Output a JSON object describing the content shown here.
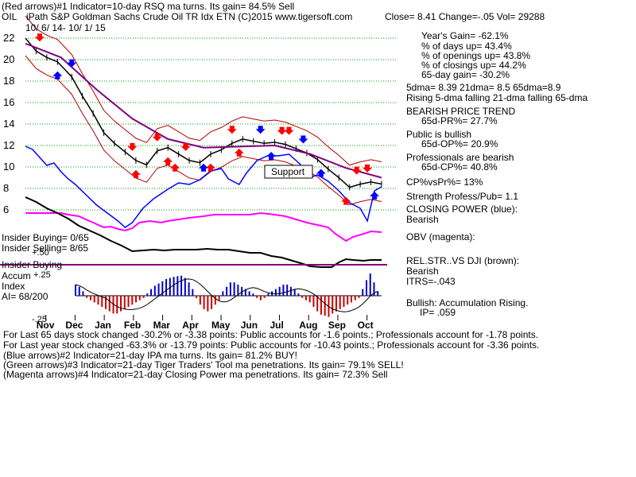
{
  "header": {
    "line1": "(Red arrows)#1 Indicator=10-day RSQ ma turns. Its gain= 84.5% Sell",
    "ticker": "OIL",
    "title": "iPath S&P Goldman Sachs Crude Oil TR Idx ETN  (C)2015 www.tigersoft.com",
    "close": "Close=  8.41  Change=-.05 Vol= 29288",
    "date_range": "10/ 6/ 14-  10/ 1/ 15"
  },
  "stats": {
    "years_gain": "Year's Gain= -62.1%",
    "days_up": "% of days up= 43.4%",
    "openings_up": "% of openings up= 43.8%",
    "closings_up": "% of closings up= 44.2%",
    "gain_65": "65-day gain= -30.2%",
    "dma": "5dma= 8.39 21dma= 8.5 65dma=8.9",
    "rising": "Rising 5-dma falling 21-dma falling 65-dma",
    "bearish_trend": "BEARISH PRICE TREND",
    "pr65": "65d-PR%= 27.7%",
    "public_bullish": "Public is bullish",
    "op65": "65d-OP%= 20.9%",
    "prof_bearish": "Professionals are bearish",
    "cp65": "65d-CP%= 40.8%",
    "cpvspr": "CP%vsPr%=  13%",
    "strength": "Strength Profess/Pub= 1.1",
    "closing_power": "CLOSING POWER (blue):",
    "closing_power_val": "Bearish",
    "obv": "OBV (magenta):",
    "relstr": "REL.STR..VS DJI (brown):",
    "relstr_val": "Bearish",
    "itrs": "ITRS=-.043",
    "bullish_accum": "Bullish: Accumulation Rising.",
    "ip": "IP=  .059"
  },
  "left_labels": {
    "insider_buying": "Insider Buying= 0/65",
    "insider_selling": "Insider Selling= 8/65",
    "insider_buying2": "Insider Buying",
    "accum": "Accum",
    "index": "Index",
    "ai": "AI= 68/200",
    "p50": "+.50",
    "p25": "+.25",
    "m25": "-.25",
    "support": "Support"
  },
  "footer": {
    "l1": "For Last 65 days stock changed -30.2% or -3.38 points:  Public accounts for -1.6 points.;  Professionals account for -1.78 points.",
    "l2": "For Last year stock changed -63.3% or -13.79 points:  Public accounts for -10.43 points.;  Professionals account for -3.36 points.",
    "l3": "(Blue arrows)#2 Indicator=21-day IPA ma turns. Its gain= 81.2% BUY!",
    "l4": "(Green arrows)#3 Indicator=21-day Tiger Traders' Tool ma penetrations. Its gain= 79.1% SELL!",
    "l5": "(Magenta arrows)#4 Indicator=21-day Closing Power ma penetrations. Its gain= 72.3% Sell"
  },
  "colors": {
    "price": "#000000",
    "band": "#b30000",
    "ma65": "#800080",
    "closing_power": "#0000ff",
    "obv": "#ff00ff",
    "rel_strength": "#000000",
    "accum_pos": "#0000cc",
    "accum_neg": "#cc0000",
    "grid": "#009900",
    "red_arrow": "#ff0000",
    "blue_arrow": "#0000ff"
  },
  "chart_data": {
    "type": "line",
    "title": "iPath S&P Goldman Sachs Crude Oil TR Idx ETN",
    "y_ticks": [
      22,
      20,
      18,
      16,
      14,
      12,
      10,
      8,
      6
    ],
    "ylim": [
      5,
      22
    ],
    "x_ticks": [
      "Nov",
      "Dec",
      "Jan",
      "Feb",
      "Mar",
      "Apr",
      "May",
      "Jun",
      "Jul",
      "Aug",
      "Sep",
      "Oct"
    ],
    "grid": true,
    "series": [
      {
        "type": "line",
        "x": [
          0,
          0.03,
          0.06,
          0.09,
          0.13,
          0.16,
          0.19,
          0.22,
          0.25,
          0.28,
          0.31,
          0.34,
          0.37,
          0.4,
          0.43,
          0.46,
          0.49,
          0.52,
          0.55,
          0.58,
          0.61,
          0.64,
          0.67,
          0.7,
          0.73,
          0.76,
          0.79,
          0.82,
          0.85,
          0.88,
          0.91,
          0.94,
          0.97,
          1.0
        ],
        "values": [
          22,
          20.8,
          20.2,
          19.8,
          18.4,
          16.6,
          15,
          13.2,
          12.2,
          11.4,
          10.6,
          10.2,
          11.5,
          11.8,
          11.2,
          10.6,
          10.4,
          11.2,
          11.6,
          12.2,
          12.6,
          12.4,
          12.2,
          12.3,
          12.1,
          11.7,
          11.3,
          10.7,
          9.8,
          9.0,
          8.1,
          8.4,
          8.6,
          8.41
        ]
      },
      {
        "type": "line",
        "x": [
          0,
          0.1,
          0.2,
          0.3,
          0.4,
          0.5,
          0.6,
          0.7,
          0.8,
          0.9,
          1.0
        ],
        "values": [
          21.5,
          20.2,
          17.2,
          14.5,
          12.6,
          11.8,
          11.9,
          12.0,
          11.2,
          9.9,
          9.0
        ]
      }
    ]
  },
  "indicators": {
    "closing_power_points": [
      [
        0,
        184
      ],
      [
        0.02,
        188
      ],
      [
        0.04,
        198
      ],
      [
        0.06,
        208
      ],
      [
        0.08,
        205
      ],
      [
        0.1,
        216
      ],
      [
        0.12,
        225
      ],
      [
        0.14,
        232
      ],
      [
        0.17,
        245
      ],
      [
        0.2,
        258
      ],
      [
        0.23,
        268
      ],
      [
        0.26,
        278
      ],
      [
        0.28,
        286
      ],
      [
        0.3,
        280
      ],
      [
        0.33,
        262
      ],
      [
        0.36,
        250
      ],
      [
        0.4,
        238
      ],
      [
        0.43,
        230
      ],
      [
        0.46,
        232
      ],
      [
        0.49,
        226
      ],
      [
        0.52,
        215
      ],
      [
        0.55,
        212
      ],
      [
        0.57,
        225
      ],
      [
        0.6,
        232
      ],
      [
        0.62,
        218
      ],
      [
        0.65,
        202
      ],
      [
        0.68,
        196
      ],
      [
        0.71,
        196
      ],
      [
        0.74,
        194
      ],
      [
        0.77,
        206
      ],
      [
        0.8,
        223
      ],
      [
        0.82,
        220
      ],
      [
        0.85,
        228
      ],
      [
        0.88,
        240
      ],
      [
        0.91,
        255
      ],
      [
        0.94,
        262
      ],
      [
        0.96,
        278
      ],
      [
        0.98,
        240
      ],
      [
        1.0,
        235
      ]
    ],
    "obv_points": [
      [
        0,
        268
      ],
      [
        0.05,
        268
      ],
      [
        0.1,
        268
      ],
      [
        0.12,
        270
      ],
      [
        0.15,
        272
      ],
      [
        0.18,
        278
      ],
      [
        0.2,
        282
      ],
      [
        0.22,
        286
      ],
      [
        0.24,
        285
      ],
      [
        0.26,
        288
      ],
      [
        0.28,
        290
      ],
      [
        0.3,
        287
      ],
      [
        0.32,
        280
      ],
      [
        0.35,
        278
      ],
      [
        0.38,
        280
      ],
      [
        0.4,
        278
      ],
      [
        0.43,
        276
      ],
      [
        0.46,
        274
      ],
      [
        0.5,
        272
      ],
      [
        0.53,
        270
      ],
      [
        0.56,
        270
      ],
      [
        0.6,
        270
      ],
      [
        0.63,
        270
      ],
      [
        0.66,
        268
      ],
      [
        0.7,
        270
      ],
      [
        0.73,
        272
      ],
      [
        0.76,
        276
      ],
      [
        0.79,
        280
      ],
      [
        0.82,
        283
      ],
      [
        0.85,
        286
      ],
      [
        0.87,
        294
      ],
      [
        0.89,
        300
      ],
      [
        0.9,
        303
      ],
      [
        0.92,
        298
      ],
      [
        0.95,
        294
      ],
      [
        0.97,
        291
      ],
      [
        1.0,
        292
      ]
    ],
    "rel_strength_points": [
      [
        0,
        248
      ],
      [
        0.03,
        254
      ],
      [
        0.06,
        262
      ],
      [
        0.09,
        268
      ],
      [
        0.12,
        275
      ],
      [
        0.15,
        284
      ],
      [
        0.18,
        290
      ],
      [
        0.21,
        296
      ],
      [
        0.24,
        303
      ],
      [
        0.27,
        309
      ],
      [
        0.3,
        316
      ],
      [
        0.33,
        315
      ],
      [
        0.36,
        314
      ],
      [
        0.39,
        315
      ],
      [
        0.42,
        314
      ],
      [
        0.45,
        314
      ],
      [
        0.48,
        314
      ],
      [
        0.51,
        313
      ],
      [
        0.54,
        314
      ],
      [
        0.57,
        314
      ],
      [
        0.6,
        316
      ],
      [
        0.63,
        318
      ],
      [
        0.66,
        318
      ],
      [
        0.69,
        322
      ],
      [
        0.72,
        324
      ],
      [
        0.75,
        328
      ],
      [
        0.78,
        332
      ],
      [
        0.8,
        335
      ],
      [
        0.83,
        336
      ],
      [
        0.86,
        336
      ],
      [
        0.88,
        330
      ],
      [
        0.9,
        326
      ],
      [
        0.92,
        327
      ],
      [
        0.95,
        328
      ],
      [
        0.97,
        327
      ],
      [
        1.0,
        327
      ]
    ],
    "accum_bars": [
      0.5,
      0.4,
      0.2,
      -0.1,
      -0.2,
      -0.3,
      -0.4,
      -0.5,
      -0.6,
      -0.7,
      -0.8,
      -0.8,
      -0.7,
      -0.6,
      -0.5,
      -0.4,
      -0.3,
      -0.2,
      -0.1,
      0.1,
      0.3,
      0.45,
      0.55,
      0.65,
      0.75,
      0.8,
      0.85,
      0.88,
      0.9,
      0.8,
      0.6,
      0.3,
      -0.1,
      -0.4,
      -0.6,
      -0.7,
      -0.6,
      -0.4,
      -0.2,
      0.2,
      0.4,
      0.6,
      0.6,
      0.5,
      0.4,
      0.3,
      0.2,
      0.1,
      -0.1,
      -0.2,
      -0.1,
      0.1,
      0.2,
      0.3,
      0.4,
      0.5,
      0.5,
      0.4,
      0.3,
      0.1,
      -0.1,
      -0.2,
      -0.3,
      -0.5,
      -0.7,
      -0.85,
      -0.9,
      -0.95,
      -0.8,
      -0.7,
      -0.6,
      -0.5,
      -0.4,
      -0.3,
      -0.2,
      -0.1,
      0.3,
      0.7,
      1.0,
      0.6,
      0.2
    ]
  }
}
